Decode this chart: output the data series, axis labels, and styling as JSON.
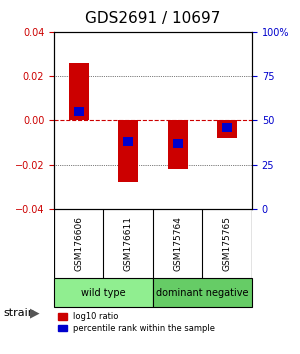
{
  "title": "GDS2691 / 10697",
  "samples": [
    "GSM176606",
    "GSM176611",
    "GSM175764",
    "GSM175765"
  ],
  "log10_ratio": [
    0.026,
    -0.028,
    -0.022,
    -0.008
  ],
  "percentile_rank": [
    55,
    38,
    37,
    46
  ],
  "groups": [
    {
      "label": "wild type",
      "samples": [
        0,
        1
      ],
      "color": "#90EE90"
    },
    {
      "label": "dominant negative",
      "samples": [
        2,
        3
      ],
      "color": "#66CC66"
    }
  ],
  "ylim": [
    -0.04,
    0.04
  ],
  "yticks_left": [
    -0.04,
    -0.02,
    0,
    0.02,
    0.04
  ],
  "yticks_right": [
    0,
    25,
    50,
    75,
    100
  ],
  "bar_width": 0.4,
  "bar_color_red": "#CC0000",
  "bar_color_blue": "#0000CC",
  "zero_line_color": "#CC0000",
  "grid_color": "#000000",
  "background_color": "#ffffff",
  "label_color_left": "#CC0000",
  "label_color_right": "#0000CC",
  "strain_label": "strain",
  "legend_red": "log10 ratio",
  "legend_blue": "percentile rank within the sample"
}
